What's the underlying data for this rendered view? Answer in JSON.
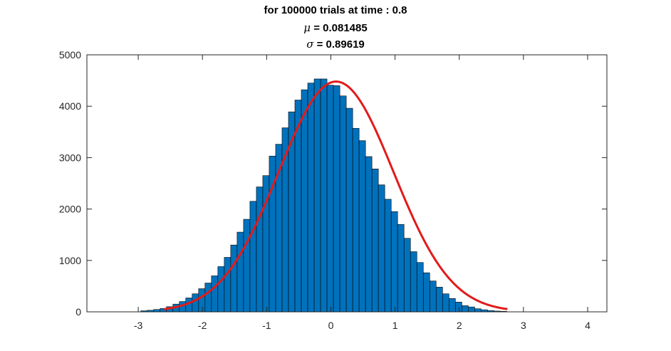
{
  "chart_data": {
    "type": "bar",
    "title": "for 100000 trials at time : 0.8",
    "subtitle_mu_symbol": "μ",
    "subtitle_mu_text": " = 0.081485",
    "subtitle_sigma_symbol": "σ",
    "subtitle_sigma_text": " = 0.89619",
    "xlim": [
      -3.8,
      4.3
    ],
    "ylim": [
      0,
      5000
    ],
    "xticks": [
      -3,
      -2,
      -1,
      0,
      1,
      2,
      3,
      4
    ],
    "xtick_labels": [
      "-3",
      "-2",
      "-1",
      "0",
      "1",
      "2",
      "3",
      "4"
    ],
    "yticks": [
      0,
      1000,
      2000,
      3000,
      4000,
      5000
    ],
    "ytick_labels": [
      "0",
      "1000",
      "2000",
      "3000",
      "4000",
      "5000"
    ],
    "bin_start": -2.96,
    "bin_width": 0.1,
    "bin_counts": [
      20,
      30,
      45,
      65,
      100,
      150,
      200,
      270,
      350,
      450,
      560,
      700,
      880,
      1060,
      1300,
      1550,
      1800,
      2150,
      2430,
      2650,
      3030,
      3260,
      3580,
      3890,
      4120,
      4320,
      4450,
      4530,
      4530,
      4410,
      4400,
      4200,
      3960,
      3570,
      3330,
      3020,
      2780,
      2470,
      2190,
      1950,
      1700,
      1430,
      1170,
      960,
      760,
      600,
      480,
      350,
      260,
      190,
      120,
      95,
      60,
      40,
      25,
      15,
      10
    ],
    "fit_mu": 0.081485,
    "fit_sigma": 0.89619,
    "fit_peak": 4480,
    "fit_range": [
      -2.6,
      2.75
    ],
    "colors": {
      "bar_fill": "#0072BD",
      "bar_edge": "#000000",
      "fit_line": "#E21A1A",
      "axes": "#262626"
    },
    "grid": false,
    "legend": "none"
  }
}
